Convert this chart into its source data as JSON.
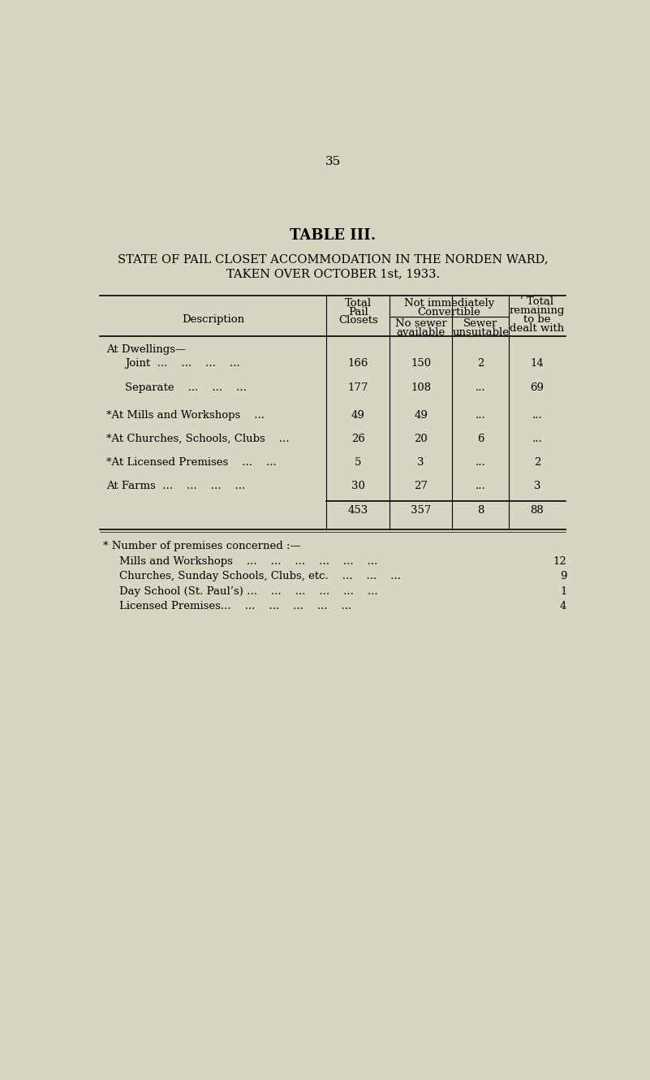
{
  "page_number": "35",
  "title": "TABLE III.",
  "subtitle_line1": "STATE OF PAIL CLOSET ACCOMMODATION IN THE NORDEN WARD,",
  "subtitle_line2": "TAKEN OVER OCTOBER 1st, 1933.",
  "bg_color": "#d6d6c2",
  "rows": [
    {
      "label": "At Dwellings—",
      "indent": false,
      "total": "",
      "no_sewer": "",
      "sewer_unsuit": "",
      "total_remaining": ""
    },
    {
      "label": "Joint  ...    ...    ...    ...",
      "indent": true,
      "total": "166",
      "no_sewer": "150",
      "sewer_unsuit": "2",
      "total_remaining": "14"
    },
    {
      "label": "Separate    ...    ...    ...",
      "indent": true,
      "total": "177",
      "no_sewer": "108",
      "sewer_unsuit": "...",
      "total_remaining": "69"
    },
    {
      "label": "*At Mills and Workshops    ...",
      "indent": false,
      "total": "49",
      "no_sewer": "49",
      "sewer_unsuit": "...",
      "total_remaining": "..."
    },
    {
      "label": "*At Churches, Schools, Clubs    ...",
      "indent": false,
      "total": "26",
      "no_sewer": "20",
      "sewer_unsuit": "6",
      "total_remaining": "..."
    },
    {
      "label": "*At Licensed Premises    ...    ...",
      "indent": false,
      "total": "5",
      "no_sewer": "3",
      "sewer_unsuit": "...",
      "total_remaining": "2"
    },
    {
      "label": "At Farms  ...    ...    ...    ...",
      "indent": false,
      "total": "30",
      "no_sewer": "27",
      "sewer_unsuit": "...",
      "total_remaining": "3"
    },
    {
      "label": "",
      "indent": false,
      "total": "453",
      "no_sewer": "357",
      "sewer_unsuit": "8",
      "total_remaining": "88"
    }
  ],
  "footnote_header": "* Number of premises concerned :—",
  "footnotes": [
    {
      "label": "Mills and Workshops    ...    ...    ...    ...    ...    ...",
      "value": "12"
    },
    {
      "label": "Churches, Sunday Schools, Clubs, etc.    ...    ...    ...",
      "value": "9"
    },
    {
      "label": "Day School (St. Paul’s) ...    ...    ...    ...    ...    ...",
      "value": "1"
    },
    {
      "label": "Licensed Premises...    ...    ...    ...    ...    ...",
      "value": "4"
    }
  ]
}
